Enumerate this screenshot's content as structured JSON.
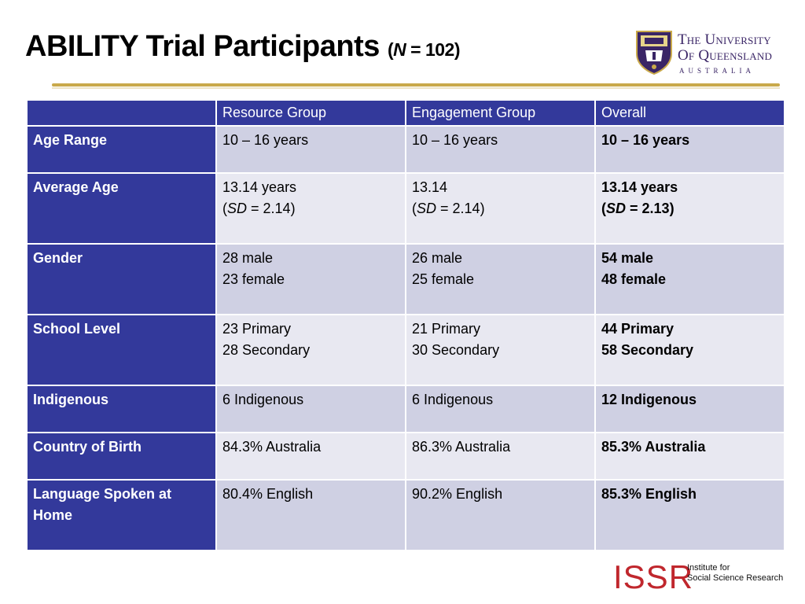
{
  "slide": {
    "title_main": "ABILITY Trial Participants",
    "title_paren_open": "(",
    "title_n": "N",
    "title_n_value": " = 102",
    "title_paren_close": ")"
  },
  "logo_uq": {
    "line1_the": "The",
    "line1_univ": "University",
    "line2_of": "Of",
    "line2_qld": "Queensland",
    "line3": "AUSTRALIA"
  },
  "table": {
    "headers": [
      "",
      "Resource Group",
      "Engagement Group",
      "Overall"
    ],
    "rows": [
      {
        "label": [
          "Age Range"
        ],
        "resource": [
          "10 – 16 years"
        ],
        "engagement": [
          "10 – 16 years"
        ],
        "overall": [
          "10 – 16 years"
        ]
      },
      {
        "label": [
          "Average Age"
        ],
        "resource": [
          "13.14 years",
          "(SD = 2.14)"
        ],
        "engagement": [
          "13.14",
          "(SD = 2.14)"
        ],
        "overall": [
          "13.14 years",
          "(SD = 2.13)"
        ]
      },
      {
        "label": [
          "Gender"
        ],
        "resource": [
          "28 male",
          "23 female"
        ],
        "engagement": [
          "26 male",
          "25 female"
        ],
        "overall": [
          "54 male",
          "48 female"
        ]
      },
      {
        "label": [
          "School Level"
        ],
        "resource": [
          "23 Primary",
          "28 Secondary"
        ],
        "engagement": [
          "21 Primary",
          "30 Secondary"
        ],
        "overall": [
          "44 Primary",
          "58 Secondary"
        ]
      },
      {
        "label": [
          "Indigenous"
        ],
        "resource": [
          "6 Indigenous"
        ],
        "engagement": [
          "6 Indigenous"
        ],
        "overall": [
          "12 Indigenous"
        ]
      },
      {
        "label": [
          "Country of Birth"
        ],
        "resource": [
          "84.3% Australia"
        ],
        "engagement": [
          "86.3% Australia"
        ],
        "overall": [
          "85.3% Australia"
        ]
      },
      {
        "label": [
          "Language Spoken at",
          "Home"
        ],
        "resource": [
          "80.4% English"
        ],
        "engagement": [
          "90.2% English"
        ],
        "overall": [
          "85.3% English"
        ]
      }
    ]
  },
  "sd_parts": {
    "open": "(",
    "sd": "SD",
    "eq_214": " = 2.14)",
    "eq_213": " = 2.13)"
  },
  "logo_issr": {
    "mark": "ISSR",
    "line1": "Institute for",
    "line2": "Social Science Research"
  },
  "colors": {
    "header_blue": "#33399b",
    "row_odd": "#cfd0e3",
    "row_even": "#e8e8f1",
    "gold_rule": "#c9a94a",
    "issr_red": "#c0272d",
    "uq_purple": "#3a2566"
  }
}
